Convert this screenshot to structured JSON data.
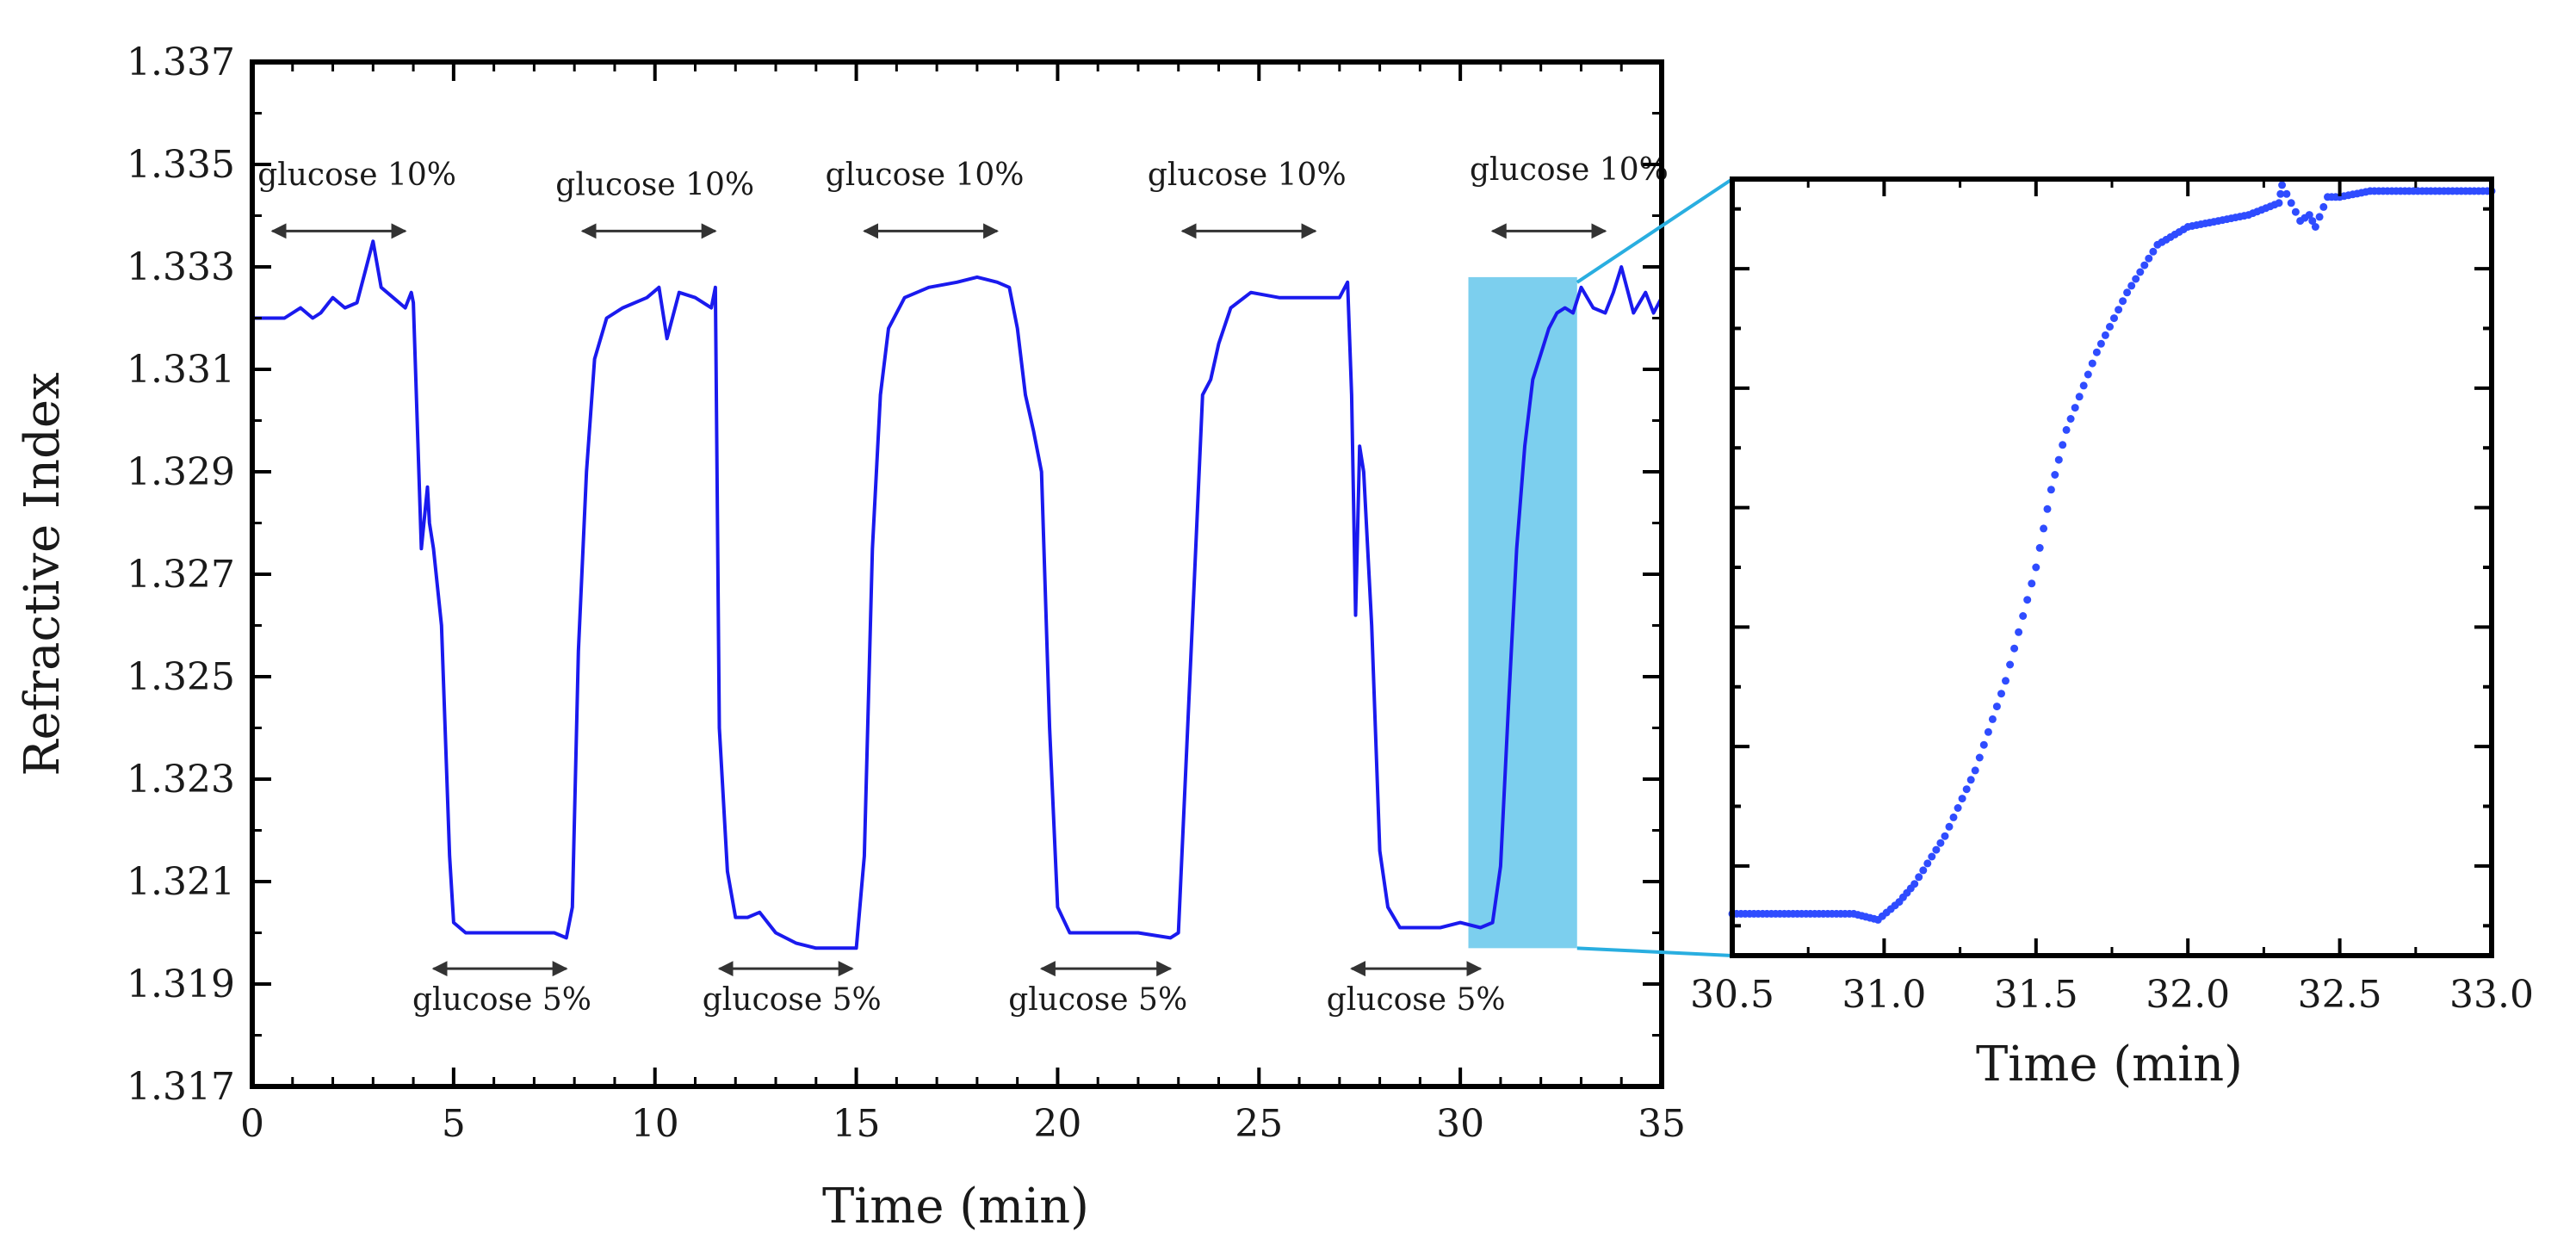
{
  "chart_data": [
    {
      "type": "line",
      "name": "main-plot",
      "xlabel": "Time (min)",
      "ylabel": "Refractive Index",
      "xlim": [
        0,
        35
      ],
      "ylim": [
        1.317,
        1.337
      ],
      "xticks": [
        0,
        5,
        10,
        15,
        20,
        25,
        30,
        35
      ],
      "xtick_labels": [
        "0",
        "5",
        "10",
        "15",
        "20",
        "25",
        "30",
        "35"
      ],
      "yticks": [
        1.317,
        1.319,
        1.321,
        1.323,
        1.325,
        1.327,
        1.329,
        1.331,
        1.333,
        1.335,
        1.337
      ],
      "ytick_labels": [
        "1.317",
        "1.319",
        "1.321",
        "1.323",
        "1.325",
        "1.327",
        "1.329",
        "1.331",
        "1.333",
        "1.335",
        "1.337"
      ],
      "series": [
        {
          "name": "refractive-index",
          "color": "#1a1aee",
          "x": [
            0,
            0.8,
            1.2,
            1.5,
            1.7,
            2.0,
            2.3,
            2.6,
            2.8,
            3.0,
            3.2,
            3.5,
            3.8,
            3.95,
            4.0,
            4.2,
            4.35,
            4.4,
            4.5,
            4.7,
            4.9,
            5.0,
            5.3,
            6.0,
            7.0,
            7.5,
            7.8,
            7.95,
            8.1,
            8.3,
            8.5,
            8.8,
            9.2,
            9.8,
            10.1,
            10.3,
            10.6,
            11.0,
            11.4,
            11.5,
            11.6,
            11.8,
            12.0,
            12.3,
            12.6,
            13.0,
            13.5,
            14.0,
            14.5,
            15.0,
            15.2,
            15.4,
            15.6,
            15.8,
            16.2,
            16.8,
            17.5,
            18.0,
            18.5,
            18.8,
            19.0,
            19.2,
            19.4,
            19.6,
            19.8,
            20.0,
            20.3,
            21.0,
            22.0,
            22.8,
            23.0,
            23.2,
            23.4,
            23.6,
            23.8,
            24.0,
            24.3,
            24.8,
            25.5,
            26.5,
            27.0,
            27.2,
            27.3,
            27.4,
            27.5,
            27.6,
            27.8,
            28.0,
            28.2,
            28.5,
            29.0,
            29.5,
            30.0,
            30.5,
            30.8,
            31.0,
            31.2,
            31.4,
            31.6,
            31.8,
            32.0,
            32.2,
            32.4,
            32.6,
            32.8,
            33.0,
            33.3,
            33.6,
            33.8,
            34.0,
            34.3,
            34.6,
            34.8,
            35.0
          ],
          "y": [
            1.332,
            1.332,
            1.3322,
            1.332,
            1.3321,
            1.3324,
            1.3322,
            1.3323,
            1.3329,
            1.3335,
            1.3326,
            1.3324,
            1.3322,
            1.3325,
            1.3323,
            1.3275,
            1.3287,
            1.328,
            1.3275,
            1.326,
            1.3215,
            1.3202,
            1.32,
            1.32,
            1.32,
            1.32,
            1.3199,
            1.3205,
            1.3255,
            1.329,
            1.3312,
            1.332,
            1.3322,
            1.3324,
            1.3326,
            1.3316,
            1.3325,
            1.3324,
            1.3322,
            1.3326,
            1.324,
            1.3212,
            1.3203,
            1.3203,
            1.3204,
            1.32,
            1.3198,
            1.3197,
            1.3197,
            1.3197,
            1.3215,
            1.3275,
            1.3305,
            1.3318,
            1.3324,
            1.3326,
            1.3327,
            1.3328,
            1.3327,
            1.3326,
            1.3318,
            1.3305,
            1.3298,
            1.329,
            1.324,
            1.3205,
            1.32,
            1.32,
            1.32,
            1.3199,
            1.32,
            1.3235,
            1.327,
            1.3305,
            1.3308,
            1.3315,
            1.3322,
            1.3325,
            1.3324,
            1.3324,
            1.3324,
            1.3327,
            1.3305,
            1.3262,
            1.3295,
            1.329,
            1.326,
            1.3216,
            1.3205,
            1.3201,
            1.3201,
            1.3201,
            1.3202,
            1.3201,
            1.3202,
            1.3213,
            1.3245,
            1.3275,
            1.3295,
            1.3308,
            1.3313,
            1.3318,
            1.3321,
            1.3322,
            1.3321,
            1.3326,
            1.3322,
            1.3321,
            1.3325,
            1.333,
            1.3321,
            1.3325,
            1.3321,
            1.3324
          ]
        }
      ],
      "highlight_region": {
        "x": [
          30.2,
          32.9
        ],
        "y": [
          1.3197,
          1.3328
        ],
        "color": "#7ccfee"
      },
      "annotations": [
        {
          "text": "glucose 10%",
          "arrow_x": [
            0.5,
            3.8
          ],
          "arrow_y": 1.3337,
          "label_x": 2.6,
          "label_y": 1.3346
        },
        {
          "text": "glucose 10%",
          "arrow_x": [
            8.2,
            11.5
          ],
          "arrow_y": 1.3337,
          "label_x": 10.0,
          "label_y": 1.3344
        },
        {
          "text": "glucose 10%",
          "arrow_x": [
            15.2,
            18.5
          ],
          "arrow_y": 1.3337,
          "label_x": 16.7,
          "label_y": 1.3346
        },
        {
          "text": "glucose 10%",
          "arrow_x": [
            23.1,
            26.4
          ],
          "arrow_y": 1.3337,
          "label_x": 24.7,
          "label_y": 1.3346
        },
        {
          "text": "glucose 10%",
          "arrow_x": [
            30.8,
            33.6
          ],
          "arrow_y": 1.3337,
          "label_x": 32.7,
          "label_y": 1.3347
        },
        {
          "text": "glucose 5%",
          "arrow_x": [
            4.5,
            7.8
          ],
          "arrow_y": 1.3193,
          "label_x": 6.2,
          "label_y": 1.3185
        },
        {
          "text": "glucose 5%",
          "arrow_x": [
            11.6,
            14.9
          ],
          "arrow_y": 1.3193,
          "label_x": 13.4,
          "label_y": 1.3185
        },
        {
          "text": "glucose 5%",
          "arrow_x": [
            19.6,
            22.8
          ],
          "arrow_y": 1.3193,
          "label_x": 21.0,
          "label_y": 1.3185
        },
        {
          "text": "glucose 5%",
          "arrow_x": [
            27.3,
            30.5
          ],
          "arrow_y": 1.3193,
          "label_x": 28.9,
          "label_y": 1.3185
        }
      ]
    },
    {
      "type": "scatter",
      "name": "zoom-plot",
      "xlabel": "Time (min)",
      "ylabel": "",
      "xlim": [
        30.5,
        33.0
      ],
      "ylim": [
        1.3195,
        1.3325
      ],
      "xticks": [
        30.5,
        31.0,
        31.5,
        32.0,
        32.5,
        33.0
      ],
      "xtick_labels": [
        "30.5",
        "31.0",
        "31.5",
        "32.0",
        "32.5",
        "33.0"
      ],
      "series": [
        {
          "name": "refractive-index-zoom",
          "color": "#2f4cff",
          "x": [
            30.5,
            30.7,
            30.9,
            30.98,
            31.05,
            31.1,
            31.2,
            31.3,
            31.4,
            31.5,
            31.55,
            31.6,
            31.7,
            31.8,
            31.9,
            32.0,
            32.1,
            32.2,
            32.3,
            32.31,
            32.34,
            32.37,
            32.4,
            32.42,
            32.46,
            32.5,
            32.6,
            32.8,
            33.0
          ],
          "y": [
            1.3202,
            1.3202,
            1.3202,
            1.3201,
            1.3204,
            1.3207,
            1.3215,
            1.3226,
            1.3241,
            1.326,
            1.3273,
            1.3283,
            1.3296,
            1.3306,
            1.3314,
            1.3317,
            1.3318,
            1.3319,
            1.3321,
            1.3324,
            1.3321,
            1.3318,
            1.3319,
            1.3317,
            1.3322,
            1.3322,
            1.3323,
            1.3323,
            1.3323
          ]
        }
      ]
    }
  ]
}
